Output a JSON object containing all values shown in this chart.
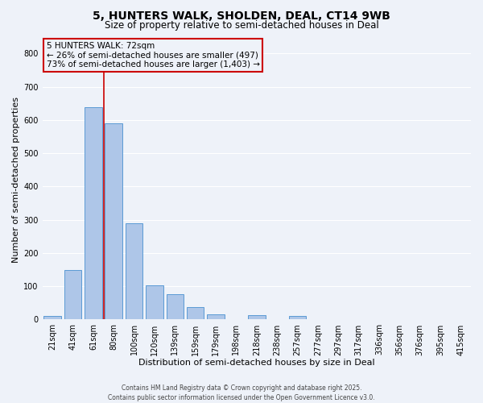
{
  "title": "5, HUNTERS WALK, SHOLDEN, DEAL, CT14 9WB",
  "subtitle": "Size of property relative to semi-detached houses in Deal",
  "xlabel": "Distribution of semi-detached houses by size in Deal",
  "ylabel": "Number of semi-detached properties",
  "categories": [
    "21sqm",
    "41sqm",
    "61sqm",
    "80sqm",
    "100sqm",
    "120sqm",
    "139sqm",
    "159sqm",
    "179sqm",
    "198sqm",
    "218sqm",
    "238sqm",
    "257sqm",
    "277sqm",
    "297sqm",
    "317sqm",
    "336sqm",
    "356sqm",
    "376sqm",
    "395sqm",
    "415sqm"
  ],
  "values": [
    10,
    148,
    638,
    590,
    289,
    104,
    77,
    37,
    16,
    0,
    13,
    0,
    10,
    0,
    0,
    0,
    0,
    0,
    0,
    0,
    0
  ],
  "bar_color": "#aec6e8",
  "bar_edge_color": "#5b9bd5",
  "marker_color": "#cc0000",
  "annotation_line1": "5 HUNTERS WALK: 72sqm",
  "annotation_line2": "← 26% of semi-detached houses are smaller (497)",
  "annotation_line3": "73% of semi-detached houses are larger (1,403) →",
  "ylim": [
    0,
    840
  ],
  "yticks": [
    0,
    100,
    200,
    300,
    400,
    500,
    600,
    700,
    800
  ],
  "footer_line1": "Contains HM Land Registry data © Crown copyright and database right 2025.",
  "footer_line2": "Contains public sector information licensed under the Open Government Licence v3.0.",
  "background_color": "#eef2f9",
  "grid_color": "#ffffff",
  "title_fontsize": 10,
  "subtitle_fontsize": 8.5,
  "xlabel_fontsize": 8,
  "ylabel_fontsize": 8,
  "tick_fontsize": 7,
  "footer_fontsize": 5.5,
  "ann_fontsize": 7.5
}
